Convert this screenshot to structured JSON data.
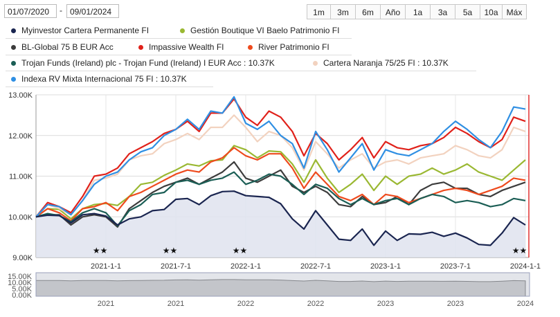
{
  "date_range": {
    "from": "01/07/2020",
    "to": "09/01/2024"
  },
  "range_buttons": [
    "1m",
    "3m",
    "6m",
    "Año",
    "1a",
    "3a",
    "5a",
    "10a",
    "Máx"
  ],
  "legend": [
    [
      {
        "name": "Myinvestor Cartera Permanente FI",
        "color": "#1a2550"
      },
      {
        "name": "Gestión Boutique VI Baelo Patrimonio FI",
        "color": "#9ab832"
      }
    ],
    [
      {
        "name": "BL-Global 75 B EUR Acc",
        "color": "#3c3c3c"
      },
      {
        "name": "Impassive Wealth FI",
        "color": "#e0211a"
      },
      {
        "name": "River Patrimonio FI",
        "color": "#ee4a1d"
      }
    ],
    [
      {
        "name": "Trojan Funds (Ireland) plc - Trojan Fund (Ireland) I EUR Acc : 10.37K",
        "color": "#1b5e55"
      },
      {
        "name": "Cartera Naranja 75/25 FI : 10.37K",
        "color": "#f2d2bf"
      }
    ],
    [
      {
        "name": "Indexa RV Mixta Internacional 75 FI : 10.37K",
        "color": "#2f8fe3"
      }
    ]
  ],
  "chart_data": {
    "type": "line",
    "x": [
      "2020-07",
      "2020-08",
      "2020-09",
      "2020-10",
      "2020-11",
      "2020-12",
      "2021-01",
      "2021-02",
      "2021-03",
      "2021-04",
      "2021-05",
      "2021-06",
      "2021-07",
      "2021-08",
      "2021-09",
      "2021-10",
      "2021-11",
      "2021-12",
      "2022-01",
      "2022-02",
      "2022-03",
      "2022-04",
      "2022-05",
      "2022-06",
      "2022-07",
      "2022-08",
      "2022-09",
      "2022-10",
      "2022-11",
      "2022-12",
      "2023-01",
      "2023-02",
      "2023-03",
      "2023-04",
      "2023-05",
      "2023-06",
      "2023-07",
      "2023-08",
      "2023-09",
      "2023-10",
      "2023-11",
      "2023-12",
      "2024-01"
    ],
    "ylim": [
      9000,
      13000
    ],
    "y_ticks": [
      "9.00K",
      "10.00K",
      "11.00K",
      "12.00K",
      "13.00K"
    ],
    "x_ticks": [
      "2021-1-1",
      "2021-7-1",
      "2022-1-1",
      "2022-7-1",
      "2023-1-1",
      "2023-7-1",
      "2024-1-1"
    ],
    "series": [
      {
        "name": "Myinvestor Cartera Permanente FI",
        "color": "#1a2550",
        "values": [
          10000,
          10040,
          10030,
          9850,
          10050,
          10080,
          10020,
          9800,
          9950,
          10000,
          10150,
          10180,
          10430,
          10450,
          10300,
          10520,
          10620,
          10630,
          10520,
          10500,
          10480,
          10320,
          9950,
          9700,
          10150,
          9800,
          9450,
          9420,
          9700,
          9300,
          9650,
          9420,
          9580,
          9570,
          9620,
          9520,
          9600,
          9480,
          9320,
          9300,
          9600,
          9980,
          9800
        ]
      },
      {
        "name": "Gestión Boutique VI Baelo Patrimonio FI",
        "color": "#9ab832",
        "values": [
          10000,
          10200,
          10180,
          9950,
          10200,
          10300,
          10330,
          10280,
          10500,
          10800,
          10850,
          11020,
          11150,
          11300,
          11250,
          11380,
          11400,
          11750,
          11650,
          11450,
          11620,
          11600,
          11300,
          10850,
          11400,
          10950,
          10600,
          10800,
          11050,
          10650,
          11000,
          10800,
          11000,
          11050,
          11200,
          11050,
          11150,
          11300,
          11100,
          11000,
          10900,
          11150,
          11400
        ]
      },
      {
        "name": "BL-Global 75 B EUR Acc",
        "color": "#3c3c3c",
        "values": [
          10000,
          10050,
          10050,
          9800,
          10000,
          10050,
          10000,
          9750,
          10200,
          10400,
          10600,
          10750,
          10850,
          10950,
          10800,
          10950,
          11100,
          11350,
          10950,
          10850,
          11000,
          11150,
          10750,
          10600,
          10750,
          10600,
          10300,
          10250,
          10500,
          10300,
          10350,
          10500,
          10300,
          10650,
          10800,
          10850,
          10700,
          10700,
          10550,
          10500,
          10650,
          10750,
          10850
        ]
      },
      {
        "name": "Impassive Wealth FI",
        "color": "#e0211a",
        "values": [
          10000,
          10350,
          10250,
          10100,
          10500,
          11000,
          11050,
          11200,
          11550,
          11700,
          11850,
          12050,
          12150,
          12350,
          12100,
          12550,
          12550,
          12900,
          12450,
          12250,
          12600,
          12450,
          12100,
          11500,
          12050,
          11800,
          11400,
          11650,
          11950,
          11450,
          11850,
          11700,
          11650,
          11750,
          11800,
          11950,
          12200,
          12050,
          11850,
          11700,
          11900,
          12450,
          12350
        ]
      },
      {
        "name": "River Patrimonio FI",
        "color": "#ee4a1d",
        "values": [
          10000,
          10200,
          10100,
          9900,
          10200,
          10250,
          10350,
          10150,
          10500,
          10600,
          10750,
          10900,
          11050,
          11150,
          11100,
          11350,
          11450,
          11700,
          11500,
          11400,
          11550,
          11550,
          11200,
          10700,
          11100,
          10800,
          10500,
          10400,
          10550,
          10300,
          10550,
          10500,
          10350,
          10450,
          10550,
          10650,
          10700,
          10650,
          10550,
          10650,
          10750,
          10950,
          10900
        ]
      },
      {
        "name": "Trojan Funds (Ireland) plc - Trojan Fund (Ireland) I EUR Acc",
        "color": "#1b5e55",
        "values": [
          10000,
          10080,
          10030,
          9880,
          10100,
          10200,
          10100,
          9780,
          10150,
          10300,
          10550,
          10600,
          10850,
          10900,
          10800,
          10900,
          10950,
          11100,
          10800,
          10900,
          11050,
          11000,
          10800,
          10550,
          10800,
          10700,
          10450,
          10300,
          10450,
          10300,
          10400,
          10450,
          10300,
          10450,
          10550,
          10500,
          10350,
          10400,
          10350,
          10250,
          10300,
          10450,
          10400
        ]
      },
      {
        "name": "Cartera Naranja 75/25 FI",
        "color": "#f2d2bf",
        "values": [
          10000,
          10300,
          10200,
          10050,
          10400,
          10900,
          10950,
          11050,
          11400,
          11500,
          11550,
          11800,
          11900,
          12050,
          11900,
          12200,
          12200,
          12500,
          12200,
          11850,
          12100,
          12000,
          11700,
          11150,
          11850,
          11550,
          11200,
          11400,
          11550,
          11200,
          11350,
          11400,
          11300,
          11450,
          11500,
          11550,
          11750,
          11650,
          11500,
          11450,
          11650,
          12200,
          12100
        ]
      },
      {
        "name": "Indexa RV Mixta Internacional 75 FI",
        "color": "#2f8fe3",
        "values": [
          10000,
          10300,
          10250,
          10050,
          10400,
          10800,
          11000,
          11100,
          11400,
          11600,
          11700,
          12000,
          12150,
          12400,
          12150,
          12600,
          12550,
          12950,
          12300,
          12150,
          12350,
          12000,
          11800,
          11200,
          12100,
          11650,
          11100,
          11450,
          11800,
          11150,
          11650,
          11550,
          11500,
          11650,
          11800,
          12100,
          12350,
          12150,
          11900,
          11700,
          12100,
          12700,
          12650
        ]
      }
    ],
    "area_series": "Myinvestor Cartera Permanente FI",
    "event_markers": [
      "★★",
      "★★",
      "★★",
      "★★"
    ],
    "navigator": {
      "ylabels": [
        "15.00K",
        "10.00K",
        "5.00K",
        "0.00K"
      ],
      "xlabels": [
        "2021",
        "2021",
        "2022",
        "2022",
        "2023",
        "2023",
        "2024"
      ]
    }
  }
}
